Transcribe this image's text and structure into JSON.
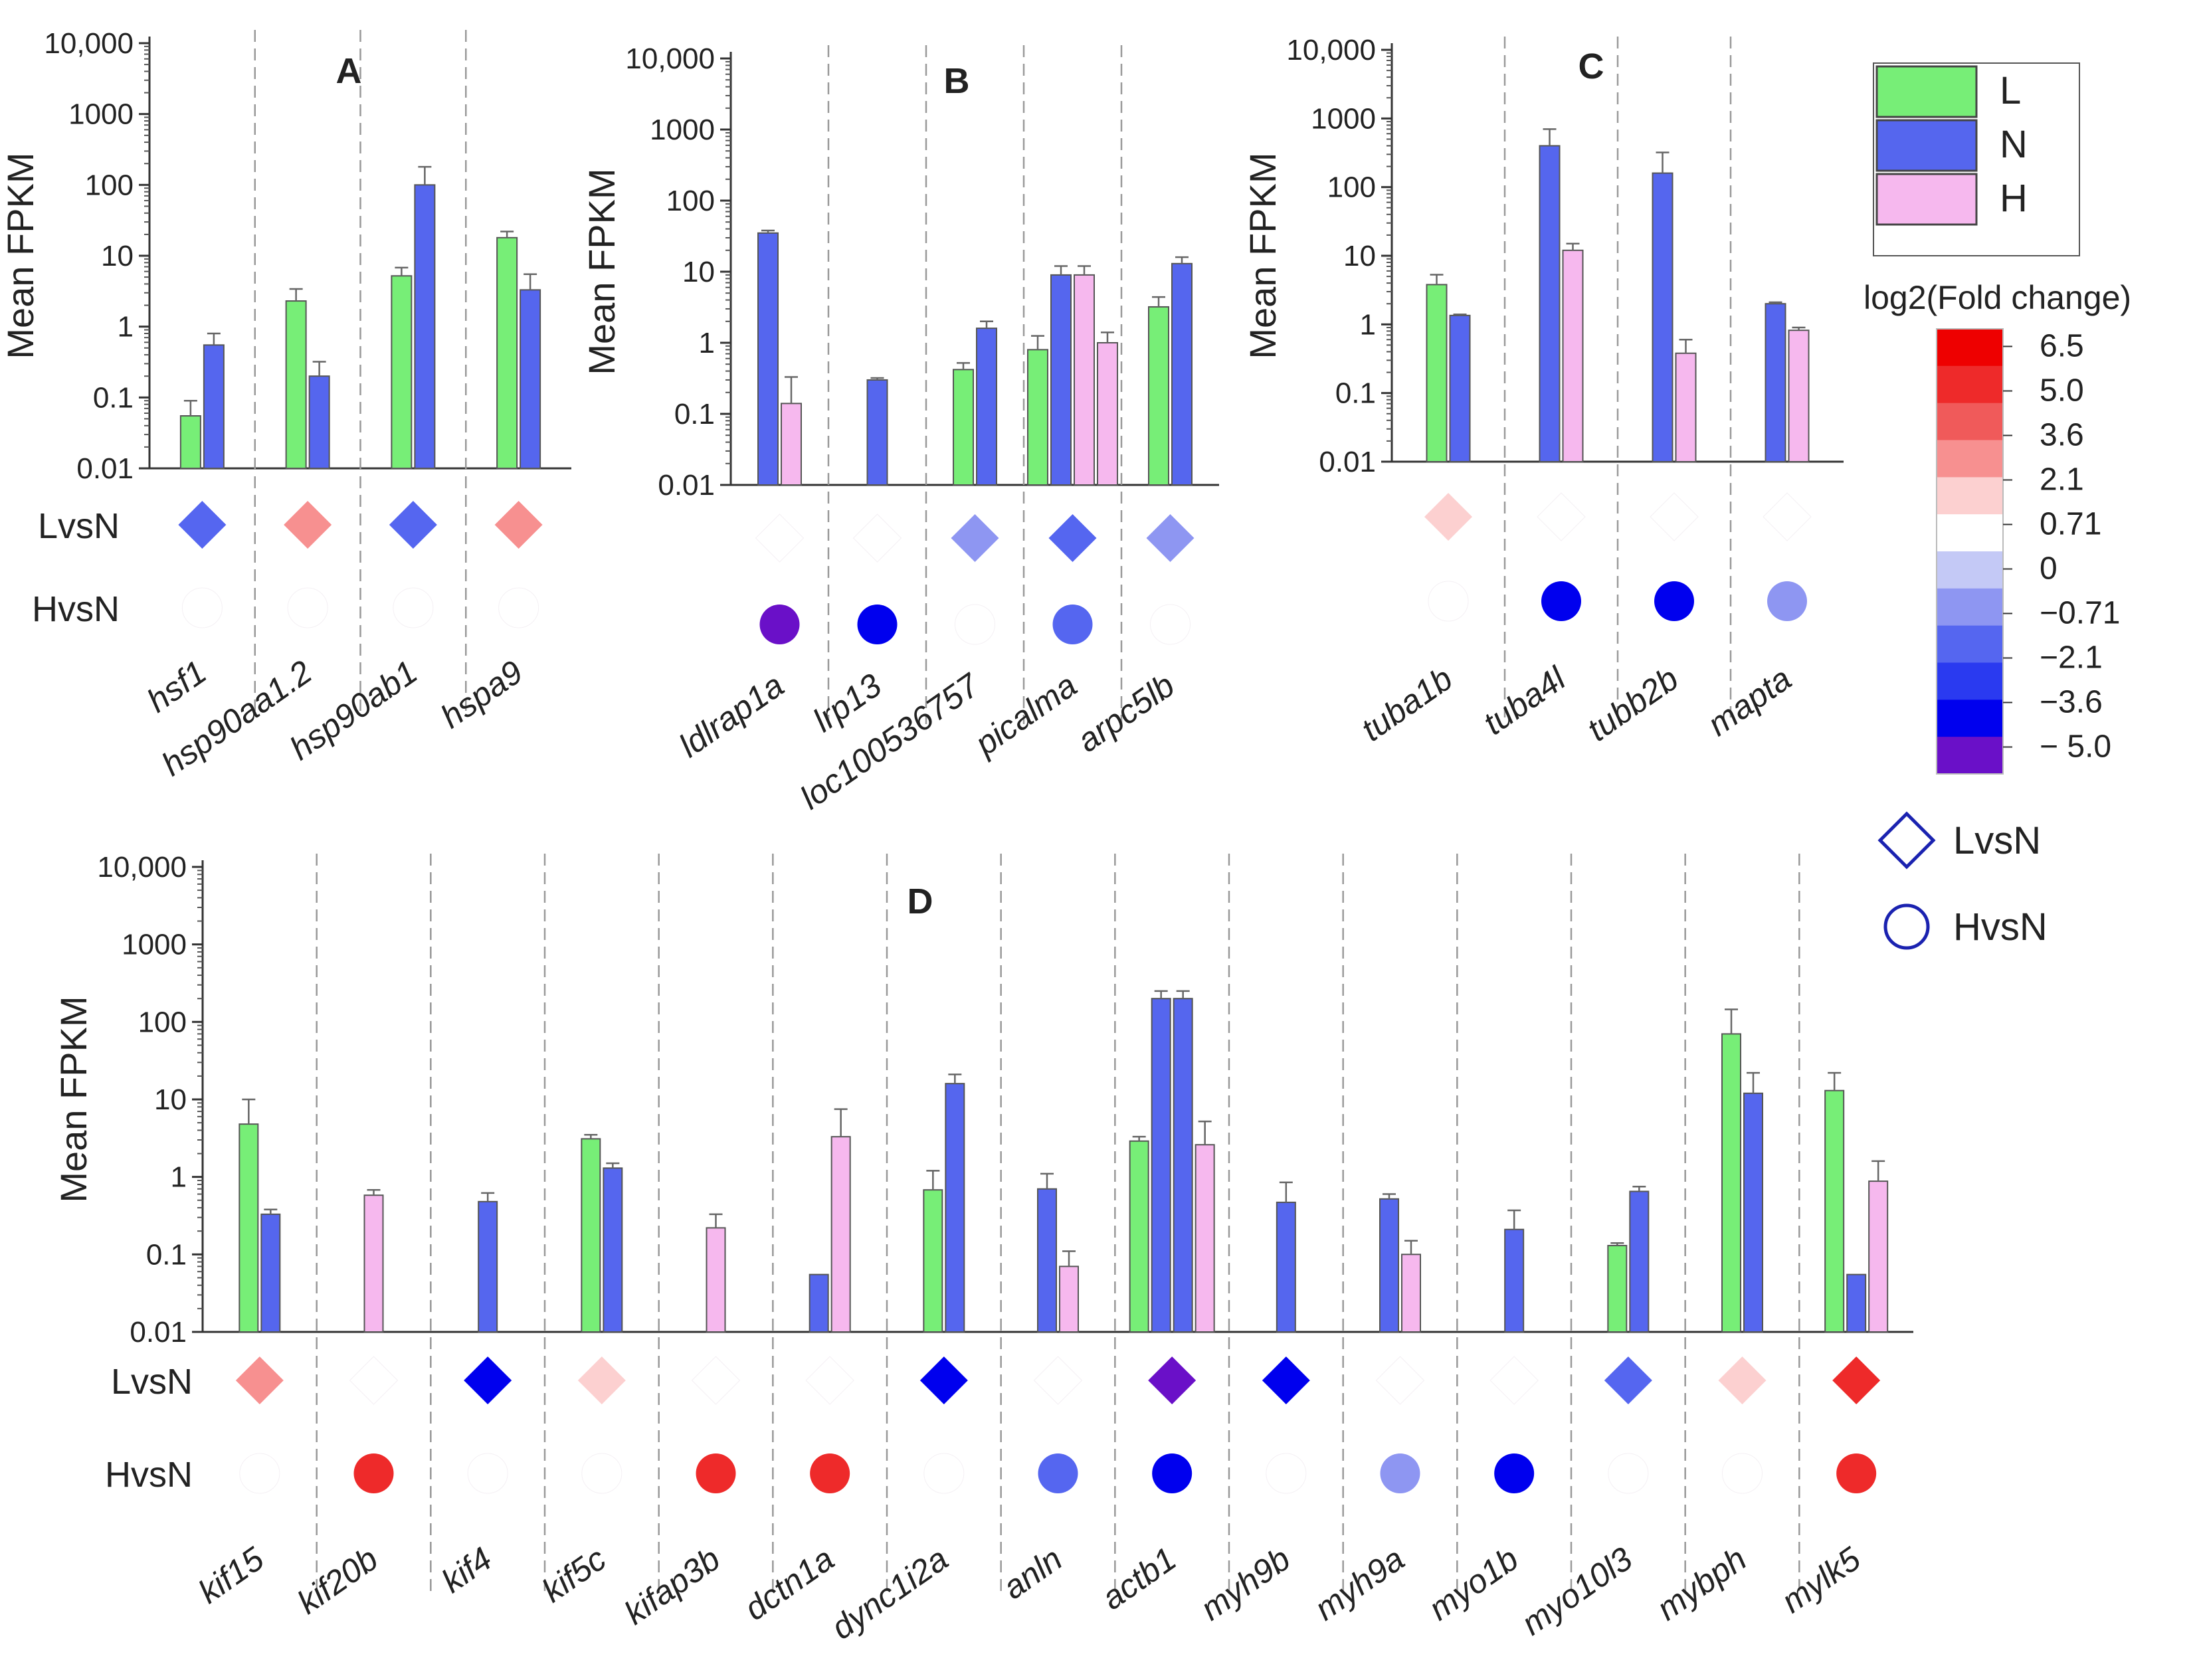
{
  "colors": {
    "L": "#77ee77",
    "N": "#5566ee",
    "H": "#f6b8ee",
    "bar_stroke": "#555555",
    "scale": [
      "#6a10c8",
      "#0000ee",
      "#2a3af0",
      "#5566f0",
      "#8e96f2",
      "#c4c9f6",
      "#ffffff",
      "#fcd0d0",
      "#f79090",
      "#f05a5a",
      "#ee2a2a",
      "#ee0000"
    ]
  },
  "legend": {
    "series": [
      "L",
      "N",
      "H"
    ],
    "colorbar_title": "log2(Fold change)",
    "colorbar_ticks": [
      "6.5",
      "5.0",
      "3.6",
      "2.1",
      "0.71",
      "0",
      "−0.71",
      "−2.1",
      "−3.6",
      "− 5.0"
    ],
    "shapes": [
      {
        "shape": "diamond",
        "label": "LvsN"
      },
      {
        "shape": "circle",
        "label": "HvsN"
      }
    ]
  },
  "chart_data": [
    {
      "panel": "A",
      "type": "bar",
      "scale": "log",
      "ylabel": "Mean FPKM",
      "ylim": [
        0.01,
        10000
      ],
      "yticks": [
        "0.01",
        "0.1",
        "1",
        "10",
        "100",
        "1000",
        "10,000"
      ],
      "row_labels": [
        "LvsN",
        "HvsN"
      ],
      "categories": [
        "hsf1",
        "hsp90aa1.2",
        "hsp90ab1",
        "hspa9"
      ],
      "series": [
        {
          "name": "L",
          "values": [
            0.055,
            2.3,
            5.2,
            18
          ],
          "errors": [
            0.09,
            3.4,
            6.8,
            22
          ]
        },
        {
          "name": "N",
          "values": [
            0.55,
            0.2,
            100,
            3.3
          ],
          "errors": [
            0.8,
            0.32,
            180,
            5.5
          ]
        },
        {
          "name": "H",
          "values": [
            null,
            null,
            null,
            null
          ],
          "errors": [
            null,
            null,
            null,
            null
          ]
        }
      ],
      "lvsn": [
        -2.8,
        2.9,
        -2.8,
        2.9
      ],
      "hvsn": [
        0,
        0,
        0,
        0
      ]
    },
    {
      "panel": "B",
      "type": "bar",
      "scale": "log",
      "ylabel": "Mean FPKM",
      "ylim": [
        0.01,
        10000
      ],
      "yticks": [
        "0.01",
        "0.1",
        "1",
        "10",
        "100",
        "1000",
        "10,000"
      ],
      "row_labels": [
        "LvsN",
        "HvsN"
      ],
      "categories": [
        "ldlrap1a",
        "lrp13",
        "loc100536757",
        "picalma",
        "arpc5lb"
      ],
      "series": [
        {
          "name": "L",
          "values": [
            null,
            null,
            0.42,
            0.8,
            3.2
          ],
          "errors": [
            null,
            null,
            0.52,
            1.25,
            4.4
          ]
        },
        {
          "name": "N",
          "values": [
            35,
            0.3,
            1.6,
            9,
            13
          ],
          "errors": [
            38,
            0.32,
            2.0,
            12,
            16
          ]
        },
        {
          "name": "H",
          "values": [
            0.14,
            null,
            null,
            9,
            null
          ],
          "errors": [
            0.33,
            null,
            null,
            12,
            null
          ]
        }
      ],
      "lvsn": [
        0,
        0,
        -1.5,
        -2.8,
        -1.5
      ],
      "hvsn": [
        -5.3,
        -4.2,
        0,
        -2.8,
        0
      ],
      "extra_h_bar_after_picalma": {
        "value": 1.0,
        "error": 1.4
      }
    },
    {
      "panel": "C",
      "type": "bar",
      "scale": "log",
      "ylabel": "Mean FPKM",
      "ylim": [
        0.01,
        10000
      ],
      "yticks": [
        "0.01",
        "0.1",
        "1",
        "10",
        "100",
        "1000",
        "10,000"
      ],
      "row_labels": [
        "LvsN",
        "HvsN"
      ],
      "categories": [
        "tuba1b",
        "tuba4l",
        "tubb2b",
        "mapta"
      ],
      "series": [
        {
          "name": "L",
          "values": [
            3.8,
            null,
            null,
            null
          ],
          "errors": [
            5.3,
            null,
            null,
            null
          ]
        },
        {
          "name": "N",
          "values": [
            1.35,
            400,
            160,
            2.0
          ],
          "errors": [
            1.4,
            700,
            320,
            2.1
          ]
        },
        {
          "name": "H",
          "values": [
            null,
            12,
            0.38,
            0.82
          ],
          "errors": [
            null,
            15,
            0.6,
            0.9
          ]
        }
      ],
      "lvsn": [
        1.2,
        0,
        0,
        0
      ],
      "hvsn": [
        0,
        -4.2,
        -4.2,
        -1.5
      ]
    },
    {
      "panel": "D",
      "type": "bar",
      "scale": "log",
      "ylabel": "Mean FPKM",
      "ylim": [
        0.01,
        10000
      ],
      "yticks": [
        "0.01",
        "0.1",
        "1",
        "10",
        "100",
        "1000",
        "10,000"
      ],
      "row_labels": [
        "LvsN",
        "HvsN"
      ],
      "categories": [
        "kif15",
        "kif20b",
        "kif4",
        "kif5c",
        "kifap3b",
        "dctn1a",
        "dync1i2a",
        "anln",
        "actb1",
        "myh9b",
        "myh9a",
        "myo1b",
        "myo10l3",
        "mybph",
        "mylk5"
      ],
      "series": [
        {
          "name": "L",
          "values": [
            4.8,
            null,
            null,
            3.1,
            null,
            null,
            0.68,
            null,
            2.9,
            null,
            null,
            null,
            0.13,
            70,
            13
          ],
          "errors": [
            10,
            null,
            null,
            3.5,
            null,
            null,
            1.2,
            null,
            3.3,
            null,
            null,
            null,
            0.14,
            145,
            22
          ]
        },
        {
          "name": "N",
          "values": [
            0.33,
            null,
            0.48,
            1.3,
            null,
            0.055,
            16,
            0.7,
            200,
            0.47,
            0.52,
            0.21,
            0.65,
            12,
            0.055
          ],
          "errors": [
            0.38,
            null,
            0.62,
            1.5,
            null,
            0.055,
            21,
            1.1,
            250,
            0.85,
            0.6,
            0.37,
            0.75,
            22,
            0.055
          ]
        },
        {
          "name": "H",
          "values": [
            null,
            0.58,
            null,
            null,
            0.22,
            3.3,
            null,
            0.07,
            2.6,
            null,
            0.1,
            null,
            null,
            null,
            0.88
          ],
          "errors": [
            null,
            0.68,
            null,
            null,
            0.33,
            7.5,
            null,
            0.11,
            5.2,
            null,
            0.15,
            null,
            null,
            null,
            1.6
          ]
        }
      ],
      "lvsn": [
        2.9,
        0,
        -4.2,
        1.2,
        0,
        0,
        -4.2,
        0,
        -5.3,
        -4.2,
        0,
        0,
        -2.8,
        1.2,
        4.2
      ],
      "hvsn": [
        0,
        4.2,
        0,
        0,
        4.2,
        4.2,
        0,
        -2.8,
        -4.2,
        0,
        -1.5,
        -4.2,
        0,
        0,
        4.2
      ],
      "extra_n_bar_in_actb1": {
        "value": 200,
        "error": 250
      }
    }
  ]
}
